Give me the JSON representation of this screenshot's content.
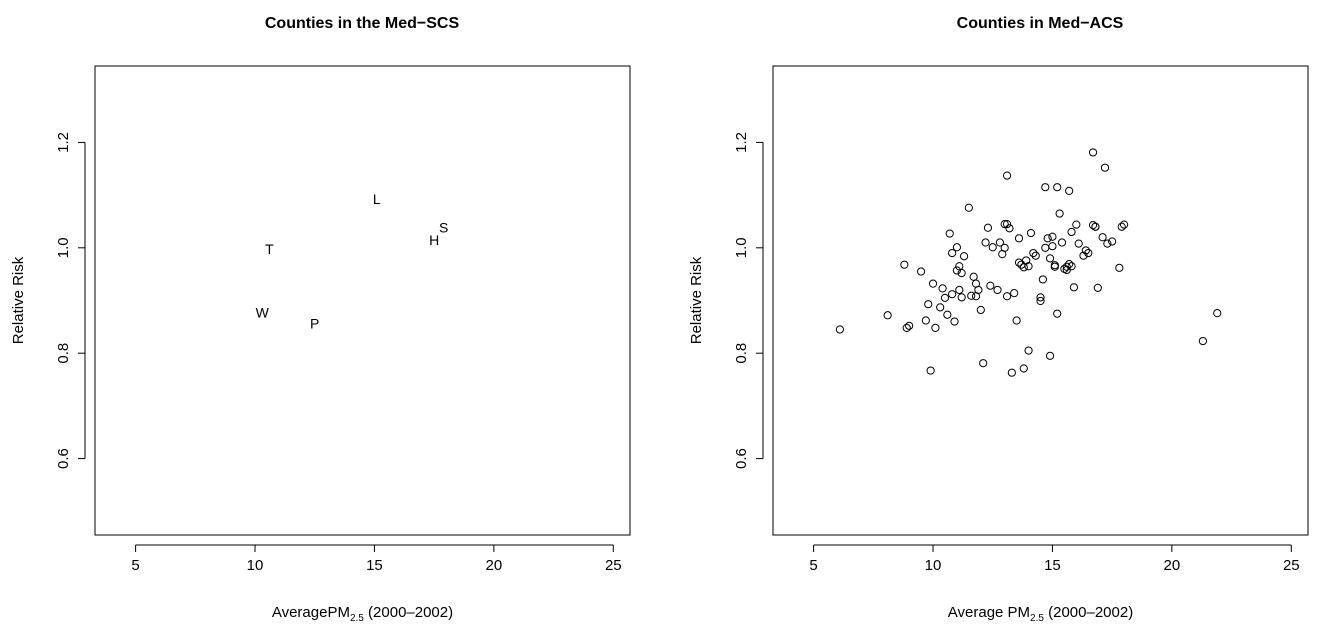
{
  "chart_data": [
    {
      "type": "scatter",
      "title": "Counties in the Med−SCS",
      "xlabel_main": "AveragePM",
      "xlabel_sub": "2.5",
      "xlabel_tail": " (2000–2002)",
      "ylabel": "Relative Risk",
      "xlim": [
        3.3,
        25.7
      ],
      "ylim": [
        0.455,
        1.345
      ],
      "xticks": [
        5,
        10,
        15,
        20,
        25
      ],
      "yticks": [
        0.6,
        0.8,
        1.0,
        1.2
      ],
      "ytick_labels": [
        "0.6",
        "0.8",
        "1.0",
        "1.2"
      ],
      "points": [
        {
          "label": "L",
          "x": 15.1,
          "y": 1.093
        },
        {
          "label": "S",
          "x": 17.9,
          "y": 1.039
        },
        {
          "label": "H",
          "x": 17.5,
          "y": 1.015
        },
        {
          "label": "T",
          "x": 10.6,
          "y": 0.998
        },
        {
          "label": "W",
          "x": 10.3,
          "y": 0.877
        },
        {
          "label": "P",
          "x": 12.5,
          "y": 0.856
        }
      ]
    },
    {
      "type": "scatter",
      "title": "Counties in Med−ACS",
      "xlabel_main": "Average PM",
      "xlabel_sub": "2.5",
      "xlabel_tail": " (2000–2002)",
      "ylabel": "Relative Risk",
      "xlim": [
        3.3,
        25.7
      ],
      "ylim": [
        0.455,
        1.345
      ],
      "xticks": [
        5,
        10,
        15,
        20,
        25
      ],
      "yticks": [
        0.6,
        0.8,
        1.0,
        1.2
      ],
      "ytick_labels": [
        "0.6",
        "0.8",
        "1.0",
        "1.2"
      ],
      "x": [
        6.1,
        8.1,
        8.8,
        8.9,
        9.0,
        9.5,
        9.7,
        9.8,
        9.9,
        10.0,
        10.1,
        10.3,
        10.4,
        10.5,
        10.6,
        10.7,
        10.8,
        10.8,
        10.9,
        11.0,
        11.0,
        11.1,
        11.1,
        11.2,
        11.2,
        11.3,
        11.5,
        11.6,
        11.7,
        11.8,
        11.8,
        11.9,
        12.0,
        12.1,
        12.2,
        12.3,
        12.4,
        12.5,
        12.7,
        12.8,
        12.9,
        13.0,
        13.0,
        13.1,
        13.1,
        13.2,
        13.3,
        13.4,
        13.5,
        13.6,
        13.6,
        13.7,
        13.8,
        13.8,
        13.9,
        14.0,
        14.0,
        14.1,
        14.2,
        14.3,
        14.5,
        14.5,
        14.6,
        14.7,
        14.7,
        14.8,
        14.9,
        14.9,
        15.0,
        15.0,
        15.1,
        15.1,
        15.2,
        15.2,
        15.3,
        15.4,
        15.5,
        15.6,
        15.6,
        15.7,
        15.7,
        15.8,
        15.8,
        15.9,
        16.0,
        16.1,
        16.3,
        16.4,
        16.5,
        16.7,
        16.7,
        16.8,
        16.9,
        17.1,
        17.2,
        17.3,
        17.5,
        17.8,
        17.9,
        18.0,
        21.3,
        21.9,
        13.1,
        16.8
      ],
      "y": [
        0.845,
        0.872,
        0.968,
        0.848,
        0.852,
        0.955,
        0.862,
        0.893,
        0.767,
        0.932,
        0.848,
        0.887,
        0.923,
        0.905,
        0.873,
        1.027,
        0.99,
        0.912,
        0.86,
        1.001,
        0.957,
        0.965,
        0.92,
        0.906,
        0.952,
        0.984,
        1.076,
        0.909,
        0.945,
        0.908,
        0.932,
        0.92,
        0.882,
        0.781,
        1.01,
        1.038,
        0.928,
        1.001,
        0.92,
        1.01,
        0.988,
        1.045,
        1.0,
        1.137,
        0.908,
        1.037,
        0.763,
        0.914,
        0.862,
        1.018,
        0.972,
        0.968,
        0.963,
        0.771,
        0.976,
        0.805,
        0.965,
        1.028,
        0.99,
        0.985,
        0.906,
        0.899,
        0.94,
        1.115,
        1.0,
        1.018,
        0.98,
        0.795,
        1.003,
        1.021,
        0.967,
        0.964,
        1.115,
        0.875,
        1.065,
        1.01,
        0.96,
        0.958,
        0.964,
        1.108,
        0.969,
        0.965,
        1.03,
        0.925,
        1.044,
        1.008,
        0.985,
        0.995,
        0.99,
        1.043,
        1.181,
        1.04,
        0.924,
        1.02,
        1.152,
        1.008,
        1.012,
        0.962,
        1.04,
        1.044,
        0.823,
        0.876,
        1.045,
        1.04
      ]
    }
  ]
}
